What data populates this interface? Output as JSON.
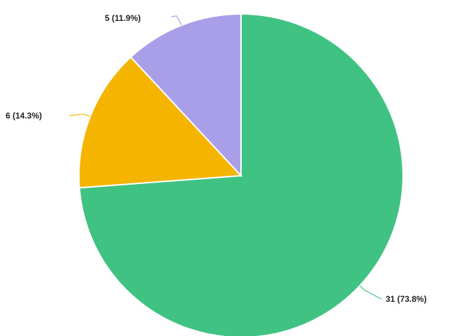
{
  "chart_data": {
    "type": "pie",
    "slices": [
      {
        "value": 31,
        "percent": 73.8,
        "label": "31 (73.8%)",
        "color": "#40c282"
      },
      {
        "value": 6,
        "percent": 14.3,
        "label": "6 (14.3%)",
        "color": "#f4b400"
      },
      {
        "value": 5,
        "percent": 11.9,
        "label": "5 (11.9%)",
        "color": "#a99ee8"
      }
    ],
    "start_angle_deg": 0,
    "direction": "clockwise",
    "legend": "none"
  }
}
